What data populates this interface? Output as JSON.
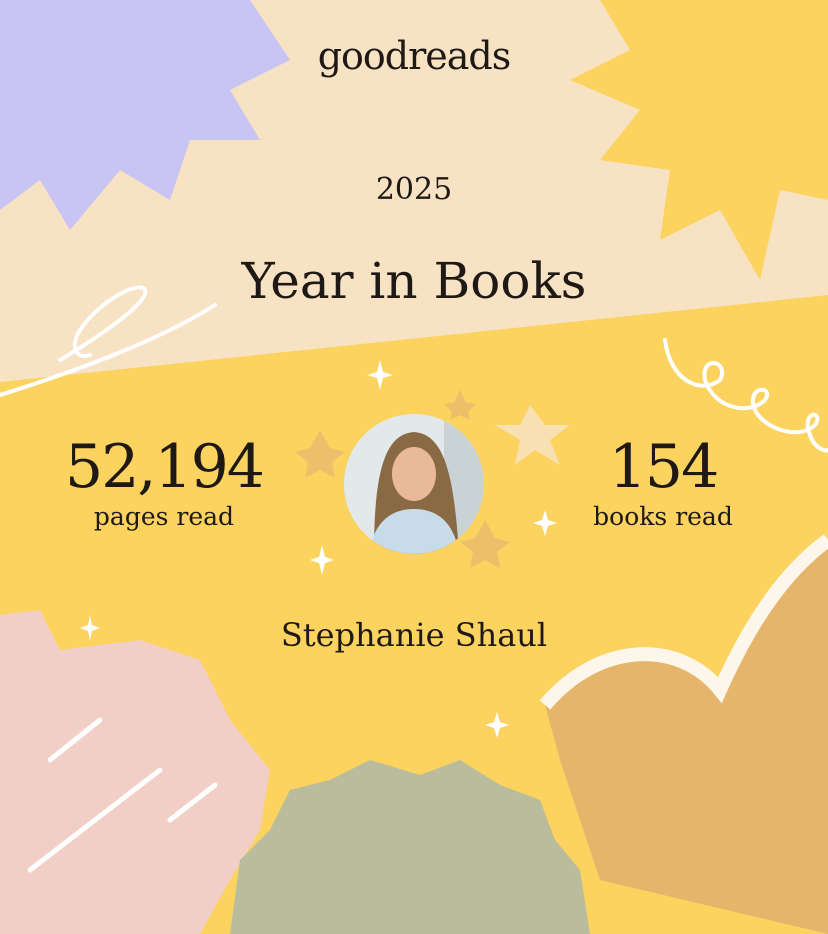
{
  "brand": {
    "logo_text": "goodreads"
  },
  "header": {
    "year": "2025",
    "title": "Year in Books"
  },
  "stats": {
    "pages": {
      "value": "52,194",
      "label": "pages read"
    },
    "books": {
      "value": "154",
      "label": "books read"
    }
  },
  "user": {
    "name": "Stephanie Shaul"
  },
  "colors": {
    "beige": "#f8e2c4",
    "yellow": "#fcd35e",
    "lavender": "#c8c4f4",
    "pink": "#f2cfc6",
    "sage": "#b9bd9d",
    "tan": "#e6b56c"
  }
}
